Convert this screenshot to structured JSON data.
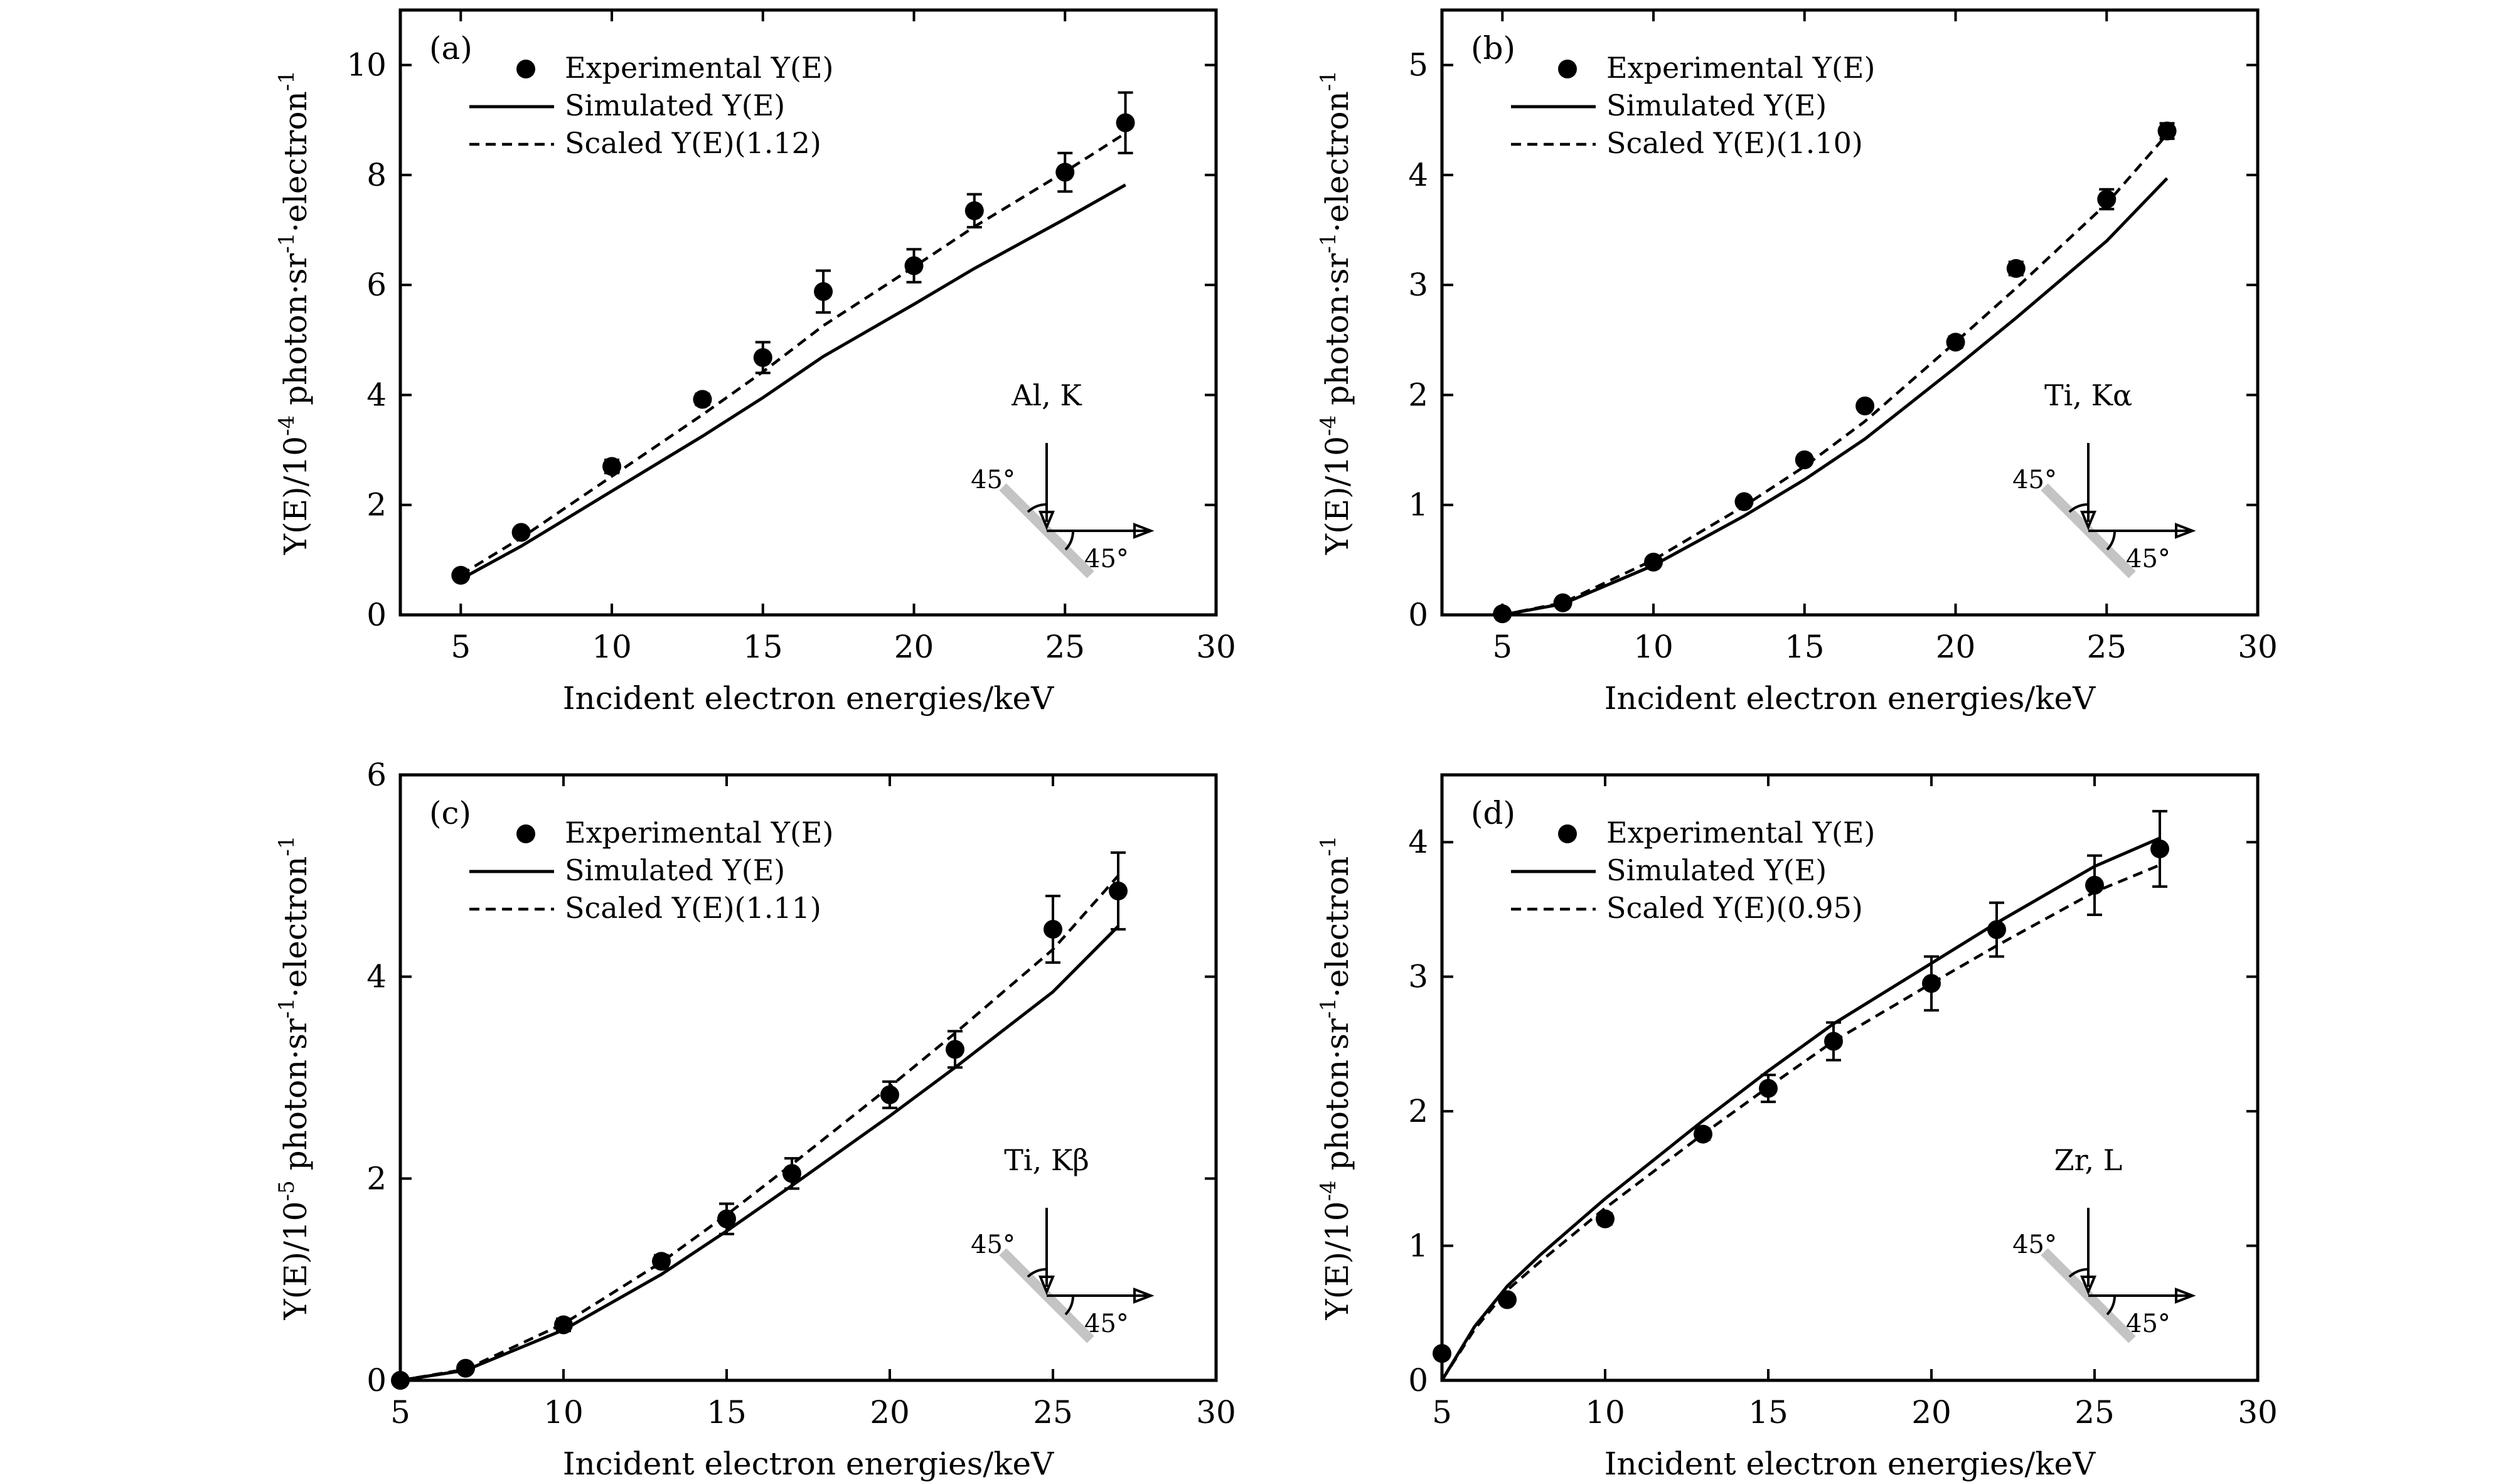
{
  "chart_data": [
    {
      "type": "scatter",
      "panel_label": "(a)",
      "annotation": "Al, K",
      "xlabel": "Incident electron energies/keV",
      "ylabel": "Y(E)/10⁻⁴ photon·sr⁻¹·electron⁻¹",
      "xlim": [
        3,
        30
      ],
      "ylim": [
        0,
        11
      ],
      "xticks": [
        5,
        10,
        15,
        20,
        25,
        30
      ],
      "yticks": [
        0,
        2,
        4,
        6,
        8,
        10
      ],
      "legend": {
        "placement": "top-left",
        "experimental": "Experimental Y(E)",
        "simulated": "Simulated Y(E)",
        "scaled": "Scaled Y(E)(1.12)"
      },
      "series": [
        {
          "name": "Experimental Y(E)",
          "kind": "points",
          "x": [
            5,
            7,
            10,
            13,
            15,
            17,
            20,
            22,
            25,
            27
          ],
          "y": [
            0.72,
            1.5,
            2.7,
            3.92,
            4.68,
            5.88,
            6.35,
            7.35,
            8.05,
            8.95
          ],
          "err": [
            0.05,
            0.08,
            0.12,
            0.1,
            0.28,
            0.38,
            0.3,
            0.3,
            0.35,
            0.55
          ]
        },
        {
          "name": "Simulated Y(E)",
          "kind": "line",
          "x": [
            5,
            7,
            10,
            13,
            15,
            17,
            20,
            22,
            25,
            27
          ],
          "y": [
            0.65,
            1.25,
            2.25,
            3.25,
            3.95,
            4.7,
            5.65,
            6.3,
            7.2,
            7.82
          ]
        },
        {
          "name": "Scaled Y(E)(1.12)",
          "kind": "dashed-line",
          "x": [
            5,
            7,
            10,
            13,
            15,
            17,
            20,
            22,
            25,
            27
          ],
          "y": [
            0.73,
            1.4,
            2.52,
            3.64,
            4.42,
            5.26,
            6.33,
            7.06,
            8.06,
            8.76
          ]
        }
      ]
    },
    {
      "type": "scatter",
      "panel_label": "(b)",
      "annotation": "Ti, Kα",
      "xlabel": "Incident electron energies/keV",
      "ylabel": "Y(E)/10⁻⁴ photon·sr⁻¹·electron⁻¹",
      "xlim": [
        3,
        30
      ],
      "ylim": [
        0,
        5.5
      ],
      "xticks": [
        5,
        10,
        15,
        20,
        25,
        30
      ],
      "yticks": [
        0,
        1,
        2,
        3,
        4,
        5
      ],
      "legend": {
        "placement": "top-left",
        "experimental": "Experimental Y(E)",
        "simulated": "Simulated Y(E)",
        "scaled": "Scaled Y(E)(1.10)"
      },
      "series": [
        {
          "name": "Experimental Y(E)",
          "kind": "points",
          "x": [
            5,
            7,
            10,
            13,
            15,
            17,
            20,
            22,
            25,
            27
          ],
          "y": [
            0.01,
            0.11,
            0.48,
            1.03,
            1.41,
            1.9,
            2.48,
            3.15,
            3.78,
            4.4
          ],
          "err": [
            0.02,
            0.02,
            0.03,
            0.04,
            0.04,
            0.04,
            0.05,
            0.06,
            0.09,
            0.07
          ]
        },
        {
          "name": "Simulated Y(E)",
          "kind": "line",
          "x": [
            5,
            7,
            10,
            13,
            15,
            17,
            20,
            22,
            25,
            27
          ],
          "y": [
            0.0,
            0.1,
            0.45,
            0.9,
            1.23,
            1.6,
            2.25,
            2.7,
            3.4,
            3.97
          ]
        },
        {
          "name": "Scaled Y(E)(1.10)",
          "kind": "dashed-line",
          "x": [
            5,
            7,
            10,
            13,
            15,
            17,
            20,
            22,
            25,
            27
          ],
          "y": [
            0.0,
            0.11,
            0.5,
            0.99,
            1.35,
            1.76,
            2.48,
            2.97,
            3.74,
            4.37
          ]
        }
      ]
    },
    {
      "type": "scatter",
      "panel_label": "(c)",
      "annotation": "Ti, Kβ",
      "xlabel": "Incident electron energies/keV",
      "ylabel": "Y(E)/10⁻⁵ photon·sr⁻¹·electron⁻¹",
      "xlim": [
        5,
        30
      ],
      "ylim": [
        0,
        6
      ],
      "xticks": [
        5,
        10,
        15,
        20,
        25,
        30
      ],
      "yticks": [
        0,
        2,
        4,
        6
      ],
      "legend": {
        "placement": "top-left",
        "experimental": "Experimental Y(E)",
        "simulated": "Simulated Y(E)",
        "scaled": "Scaled Y(E)(1.11)"
      },
      "series": [
        {
          "name": "Experimental Y(E)",
          "kind": "points",
          "x": [
            5,
            7,
            10,
            13,
            15,
            17,
            20,
            22,
            25,
            27
          ],
          "y": [
            0.0,
            0.12,
            0.55,
            1.18,
            1.6,
            2.05,
            2.83,
            3.28,
            4.47,
            4.85
          ],
          "err": [
            0.02,
            0.03,
            0.06,
            0.06,
            0.15,
            0.15,
            0.13,
            0.18,
            0.33,
            0.38
          ]
        },
        {
          "name": "Simulated Y(E)",
          "kind": "line",
          "x": [
            5,
            7,
            10,
            13,
            15,
            17,
            20,
            22,
            25,
            27
          ],
          "y": [
            0.0,
            0.1,
            0.5,
            1.05,
            1.48,
            1.93,
            2.62,
            3.1,
            3.85,
            4.5
          ]
        },
        {
          "name": "Scaled Y(E)(1.11)",
          "kind": "dashed-line",
          "x": [
            5,
            7,
            10,
            13,
            15,
            17,
            20,
            22,
            25,
            27
          ],
          "y": [
            0.0,
            0.11,
            0.56,
            1.17,
            1.64,
            2.14,
            2.91,
            3.44,
            4.27,
            5.0
          ]
        }
      ]
    },
    {
      "type": "scatter",
      "panel_label": "(d)",
      "annotation": "Zr, L",
      "xlabel": "Incident electron energies/keV",
      "ylabel": "Y(E)/10⁻⁴ photon·sr⁻¹·electron⁻¹",
      "xlim": [
        5,
        30
      ],
      "ylim": [
        0,
        4.5
      ],
      "xticks": [
        5,
        10,
        15,
        20,
        25,
        30
      ],
      "yticks": [
        0,
        1,
        2,
        3,
        4
      ],
      "legend": {
        "placement": "top-left",
        "experimental": "Experimental Y(E)",
        "simulated": "Simulated Y(E)",
        "scaled": "Scaled Y(E)(0.95)"
      },
      "series": [
        {
          "name": "Experimental Y(E)",
          "kind": "points",
          "x": [
            5,
            7,
            10,
            13,
            15,
            17,
            20,
            22,
            25,
            27
          ],
          "y": [
            0.2,
            0.6,
            1.2,
            1.83,
            2.17,
            2.52,
            2.95,
            3.35,
            3.68,
            3.95
          ],
          "err": [
            0.02,
            0.03,
            0.04,
            0.04,
            0.1,
            0.14,
            0.2,
            0.2,
            0.22,
            0.28
          ]
        },
        {
          "name": "Simulated Y(E)",
          "kind": "line",
          "x": [
            5,
            6,
            7,
            8,
            10,
            13,
            15,
            17,
            20,
            22,
            25,
            27
          ],
          "y": [
            0.0,
            0.4,
            0.7,
            0.93,
            1.35,
            1.93,
            2.3,
            2.65,
            3.1,
            3.4,
            3.82,
            4.03
          ]
        },
        {
          "name": "Scaled Y(E)(0.95)",
          "kind": "dashed-line",
          "x": [
            5,
            6,
            7,
            8,
            10,
            13,
            15,
            17,
            20,
            22,
            25,
            27
          ],
          "y": [
            0.0,
            0.38,
            0.67,
            0.88,
            1.28,
            1.83,
            2.18,
            2.52,
            2.95,
            3.23,
            3.63,
            3.83
          ]
        }
      ]
    }
  ],
  "geometry_labels": {
    "incidence": "45°",
    "takeoff": "45°"
  },
  "colors": {
    "points": "#000000",
    "lines": "#000000",
    "sample": "#c4c4c4",
    "background": "#ffffff"
  }
}
